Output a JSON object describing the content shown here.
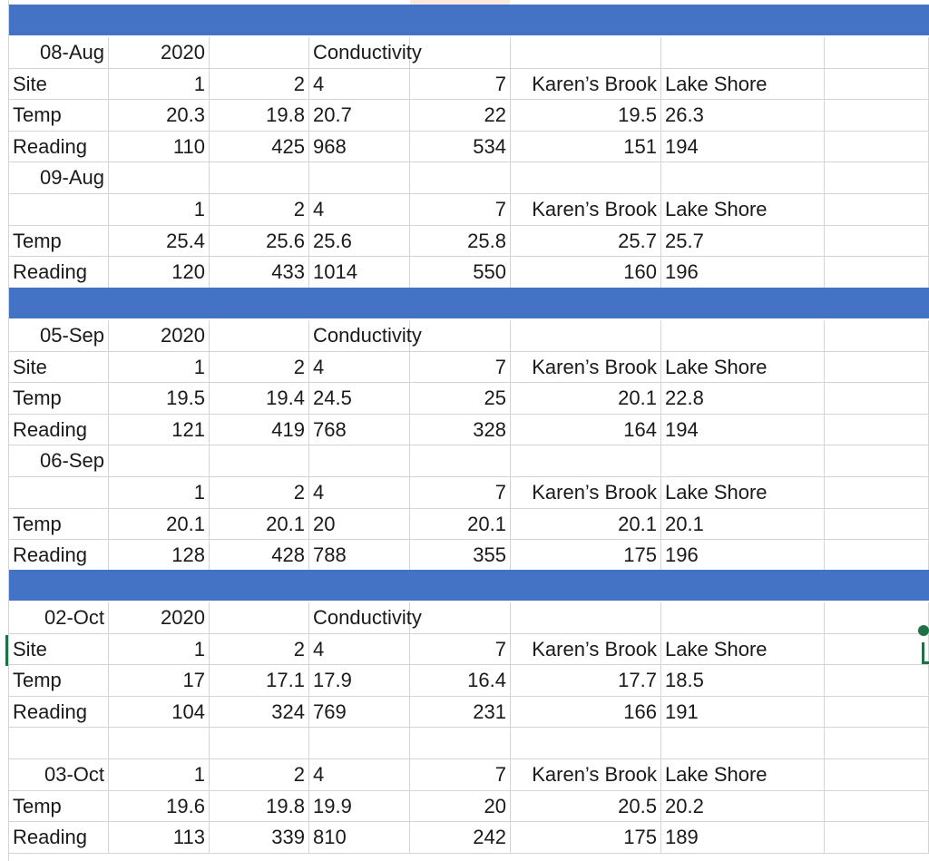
{
  "colors": {
    "band": "#4472c4",
    "grid": "#d4d4d4",
    "selection": "#1e7145",
    "text": "#1a1a1a"
  },
  "sheet": {
    "blocks": [
      {
        "rows": [
          [
            "08-Aug",
            "2020",
            "",
            "Conductivity",
            "",
            "",
            ""
          ],
          [
            "Site",
            "1",
            "2",
            "4",
            "7",
            "Karen’s Brook",
            "Lake Shore"
          ],
          [
            "Temp",
            "20.3",
            "19.8",
            "20.7",
            "22",
            "19.5",
            "26.3"
          ],
          [
            "Reading",
            "110",
            "425",
            "968",
            "534",
            "151",
            "194"
          ],
          [
            "09-Aug",
            "",
            "",
            "",
            "",
            "",
            ""
          ],
          [
            "",
            "1",
            "2",
            "4",
            "7",
            "Karen’s Brook",
            "Lake Shore"
          ],
          [
            "Temp",
            "25.4",
            "25.6",
            "25.6",
            "25.8",
            "25.7",
            "25.7"
          ],
          [
            "Reading",
            "120",
            "433",
            "1014",
            "550",
            "160",
            "196"
          ]
        ]
      },
      {
        "rows": [
          [
            "05-Sep",
            "2020",
            "",
            "Conductivity",
            "",
            "",
            ""
          ],
          [
            "Site",
            "1",
            "2",
            "4",
            "7",
            "Karen’s Brook",
            "Lake Shore"
          ],
          [
            "Temp",
            "19.5",
            "19.4",
            "24.5",
            "25",
            "20.1",
            "22.8"
          ],
          [
            "Reading",
            "121",
            "419",
            "768",
            "328",
            "164",
            "194"
          ],
          [
            "06-Sep",
            "",
            "",
            "",
            "",
            "",
            ""
          ],
          [
            "",
            "1",
            "2",
            "4",
            "7",
            "Karen’s Brook",
            "Lake Shore"
          ],
          [
            "Temp",
            "20.1",
            "20.1",
            "20",
            "20.1",
            "20.1",
            "20.1"
          ],
          [
            "Reading",
            "128",
            "428",
            "788",
            "355",
            "175",
            "196"
          ]
        ]
      },
      {
        "rows": [
          [
            "02-Oct",
            "2020",
            "",
            "Conductivity",
            "",
            "",
            ""
          ],
          [
            "Site",
            "1",
            "2",
            "4",
            "7",
            "Karen’s Brook",
            "Lake Shore"
          ],
          [
            "Temp",
            "17",
            "17.1",
            "17.9",
            "16.4",
            "17.7",
            "18.5"
          ],
          [
            "Reading",
            "104",
            "324",
            "769",
            "231",
            "166",
            "191"
          ],
          [
            "",
            "",
            "",
            "",
            "",
            "",
            ""
          ],
          [
            "03-Oct",
            "1",
            "2",
            "4",
            "7",
            "Karen’s Brook",
            "Lake Shore"
          ],
          [
            "Temp",
            "19.6",
            "19.8",
            "19.9",
            "20",
            "20.5",
            "20.2"
          ],
          [
            "Reading",
            "113",
            "339",
            "810",
            "242",
            "175",
            "189"
          ]
        ]
      }
    ]
  }
}
